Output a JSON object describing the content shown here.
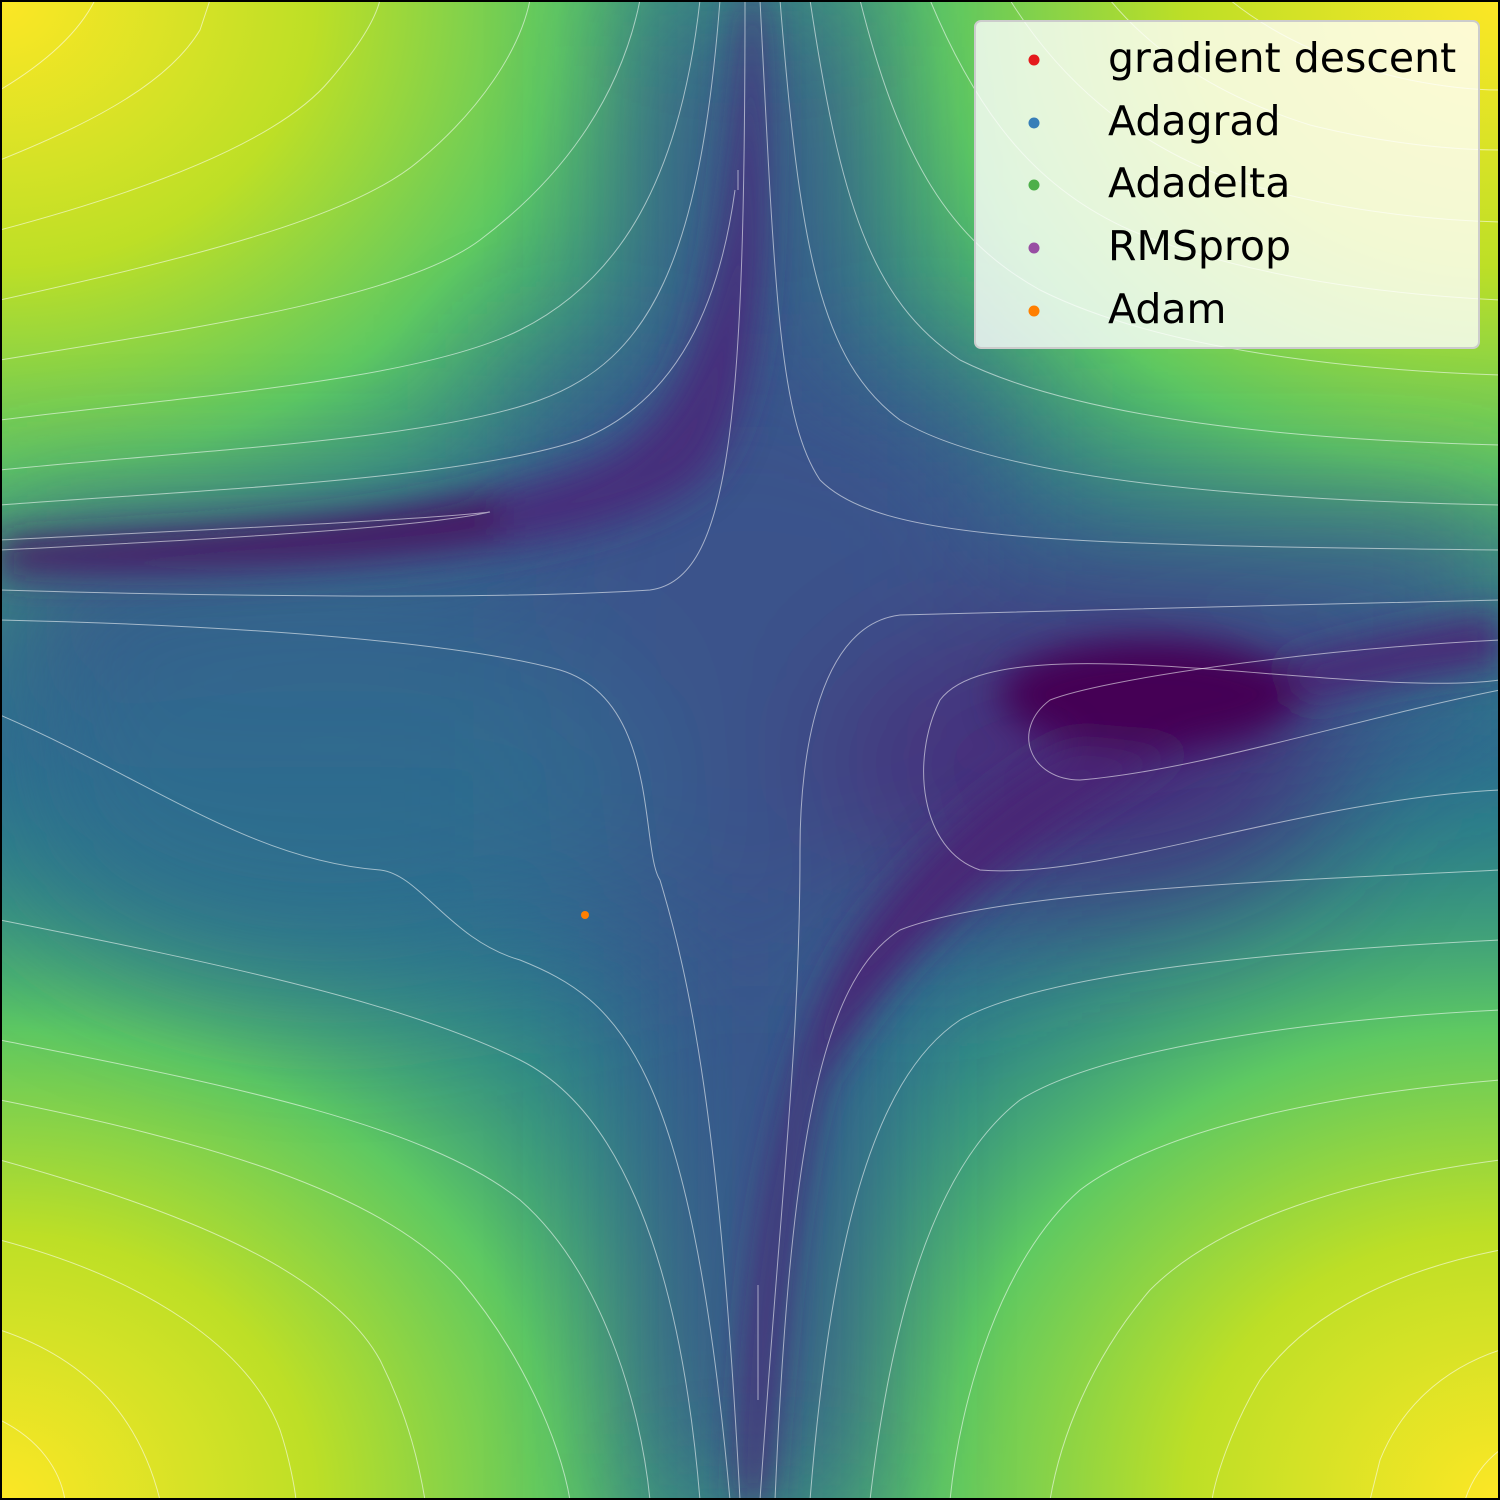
{
  "chart_data": {
    "type": "scatter",
    "background": "contour plot of the loss surface (viridis colormap) with thin white contour lines",
    "colormap": [
      "#440154",
      "#3b528b",
      "#21918c",
      "#5ec962",
      "#fde725"
    ],
    "xlim": [
      -1,
      1
    ],
    "ylim": [
      -1,
      1
    ],
    "grid": false,
    "legend": {
      "placement": "top-right",
      "entries": [
        {
          "label": "gradient descent",
          "color": "#e41a1c"
        },
        {
          "label": "Adagrad",
          "color": "#377eb8"
        },
        {
          "label": "Adadelta",
          "color": "#4daf4a"
        },
        {
          "label": "RMSprop",
          "color": "#984ea3"
        },
        {
          "label": "Adam",
          "color": "#ff7f00"
        }
      ]
    },
    "series": [
      {
        "name": "gradient descent",
        "color": "#e41a1c",
        "points": []
      },
      {
        "name": "Adagrad",
        "color": "#377eb8",
        "points": []
      },
      {
        "name": "Adadelta",
        "color": "#4daf4a",
        "points": []
      },
      {
        "name": "RMSprop",
        "color": "#984ea3",
        "points": []
      },
      {
        "name": "Adam",
        "color": "#ff7f00",
        "points": [
          {
            "x": -0.22,
            "y": -0.22
          }
        ]
      }
    ]
  }
}
